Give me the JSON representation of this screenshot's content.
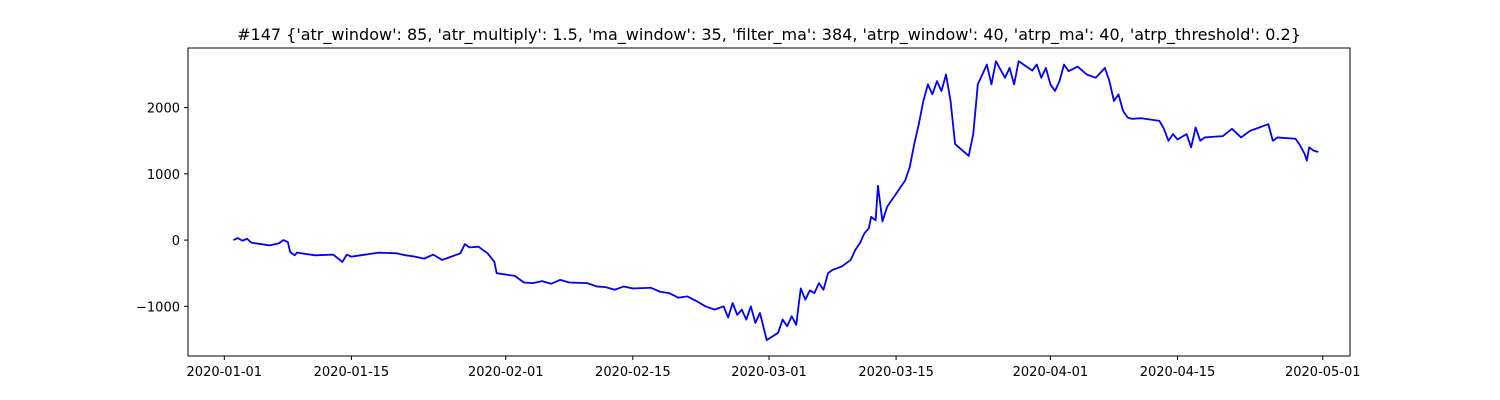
{
  "chart_data": {
    "type": "line",
    "title": "#147 {'atr_window': 85, 'atr_multiply': 1.5, 'ma_window': 35, 'filter_ma': 384, 'atrp_window': 40, 'atrp_ma': 40, 'atrp_threshold': 0.2}",
    "xlabel": "",
    "ylabel": "",
    "x_axis_kind": "date",
    "xlim": [
      "2019-12-28",
      "2020-05-04"
    ],
    "ylim": [
      -1750,
      2900
    ],
    "x_ticks": [
      "2020-01-01",
      "2020-01-15",
      "2020-02-01",
      "2020-02-15",
      "2020-03-01",
      "2020-03-15",
      "2020-04-01",
      "2020-04-15",
      "2020-05-01"
    ],
    "y_ticks": [
      -1000,
      0,
      1000,
      2000
    ],
    "y_tick_labels": [
      "−1000",
      "0",
      "1000",
      "2000"
    ],
    "grid": false,
    "legend": "none",
    "line_color": "#0000ff",
    "series": [
      {
        "points": [
          [
            "2020-01-02",
            0
          ],
          [
            "2020-01-02T12:00",
            30
          ],
          [
            "2020-01-03",
            -10
          ],
          [
            "2020-01-03T12:00",
            20
          ],
          [
            "2020-01-04",
            -40
          ],
          [
            "2020-01-05",
            -60
          ],
          [
            "2020-01-06",
            -80
          ],
          [
            "2020-01-07",
            -50
          ],
          [
            "2020-01-07T12:00",
            0
          ],
          [
            "2020-01-08",
            -30
          ],
          [
            "2020-01-08T06:00",
            -180
          ],
          [
            "2020-01-08T18:00",
            -230
          ],
          [
            "2020-01-09",
            -190
          ],
          [
            "2020-01-10",
            -210
          ],
          [
            "2020-01-11",
            -230
          ],
          [
            "2020-01-13",
            -220
          ],
          [
            "2020-01-14",
            -330
          ],
          [
            "2020-01-14T12:00",
            -220
          ],
          [
            "2020-01-15",
            -250
          ],
          [
            "2020-01-16",
            -230
          ],
          [
            "2020-01-17",
            -210
          ],
          [
            "2020-01-18",
            -190
          ],
          [
            "2020-01-20",
            -200
          ],
          [
            "2020-01-21",
            -230
          ],
          [
            "2020-01-22",
            -250
          ],
          [
            "2020-01-23",
            -280
          ],
          [
            "2020-01-24",
            -220
          ],
          [
            "2020-01-25",
            -300
          ],
          [
            "2020-01-26",
            -250
          ],
          [
            "2020-01-27",
            -200
          ],
          [
            "2020-01-27T12:00",
            -60
          ],
          [
            "2020-01-28",
            -110
          ],
          [
            "2020-01-29",
            -100
          ],
          [
            "2020-01-30",
            -200
          ],
          [
            "2020-01-30T18:00",
            -330
          ],
          [
            "2020-01-31",
            -500
          ],
          [
            "2020-02-02",
            -540
          ],
          [
            "2020-02-03",
            -640
          ],
          [
            "2020-02-04",
            -650
          ],
          [
            "2020-02-05",
            -620
          ],
          [
            "2020-02-06",
            -660
          ],
          [
            "2020-02-07",
            -600
          ],
          [
            "2020-02-08",
            -640
          ],
          [
            "2020-02-10",
            -650
          ],
          [
            "2020-02-11",
            -700
          ],
          [
            "2020-02-12",
            -710
          ],
          [
            "2020-02-13",
            -750
          ],
          [
            "2020-02-14",
            -700
          ],
          [
            "2020-02-15",
            -730
          ],
          [
            "2020-02-17",
            -720
          ],
          [
            "2020-02-18",
            -780
          ],
          [
            "2020-02-19",
            -800
          ],
          [
            "2020-02-20",
            -870
          ],
          [
            "2020-02-21",
            -850
          ],
          [
            "2020-02-22",
            -920
          ],
          [
            "2020-02-23",
            -1000
          ],
          [
            "2020-02-24",
            -1050
          ],
          [
            "2020-02-25",
            -1000
          ],
          [
            "2020-02-25T12:00",
            -1170
          ],
          [
            "2020-02-26",
            -950
          ],
          [
            "2020-02-26T12:00",
            -1130
          ],
          [
            "2020-02-27",
            -1050
          ],
          [
            "2020-02-27T12:00",
            -1200
          ],
          [
            "2020-02-28",
            -1000
          ],
          [
            "2020-02-28T12:00",
            -1250
          ],
          [
            "2020-02-29",
            -1100
          ],
          [
            "2020-02-29T18:00",
            -1510
          ],
          [
            "2020-03-02",
            -1400
          ],
          [
            "2020-03-02T12:00",
            -1200
          ],
          [
            "2020-03-03",
            -1300
          ],
          [
            "2020-03-03T12:00",
            -1150
          ],
          [
            "2020-03-04",
            -1280
          ],
          [
            "2020-03-04T06:00",
            -1000
          ],
          [
            "2020-03-04T12:00",
            -730
          ],
          [
            "2020-03-05",
            -900
          ],
          [
            "2020-03-05T12:00",
            -760
          ],
          [
            "2020-03-06",
            -800
          ],
          [
            "2020-03-06T12:00",
            -650
          ],
          [
            "2020-03-07",
            -750
          ],
          [
            "2020-03-07T12:00",
            -500
          ],
          [
            "2020-03-08",
            -450
          ],
          [
            "2020-03-09",
            -400
          ],
          [
            "2020-03-10",
            -300
          ],
          [
            "2020-03-10T12:00",
            -150
          ],
          [
            "2020-03-11",
            -50
          ],
          [
            "2020-03-11T12:00",
            100
          ],
          [
            "2020-03-12",
            180
          ],
          [
            "2020-03-12T06:00",
            350
          ],
          [
            "2020-03-12T18:00",
            300
          ],
          [
            "2020-03-13",
            820
          ],
          [
            "2020-03-13T12:00",
            280
          ],
          [
            "2020-03-14",
            500
          ],
          [
            "2020-03-15",
            700
          ],
          [
            "2020-03-16",
            900
          ],
          [
            "2020-03-16T12:00",
            1100
          ],
          [
            "2020-03-17",
            1450
          ],
          [
            "2020-03-17T12:00",
            1750
          ],
          [
            "2020-03-18",
            2100
          ],
          [
            "2020-03-18T12:00",
            2350
          ],
          [
            "2020-03-19",
            2200
          ],
          [
            "2020-03-19T12:00",
            2400
          ],
          [
            "2020-03-20",
            2250
          ],
          [
            "2020-03-20T12:00",
            2500
          ],
          [
            "2020-03-21",
            2100
          ],
          [
            "2020-03-21T12:00",
            1450
          ],
          [
            "2020-03-23",
            1270
          ],
          [
            "2020-03-23T12:00",
            1600
          ],
          [
            "2020-03-24",
            2350
          ],
          [
            "2020-03-24T12:00",
            2500
          ],
          [
            "2020-03-25",
            2650
          ],
          [
            "2020-03-25T12:00",
            2350
          ],
          [
            "2020-03-26",
            2700
          ],
          [
            "2020-03-27",
            2450
          ],
          [
            "2020-03-27T12:00",
            2600
          ],
          [
            "2020-03-28",
            2350
          ],
          [
            "2020-03-28T12:00",
            2700
          ],
          [
            "2020-03-30",
            2560
          ],
          [
            "2020-03-30T12:00",
            2650
          ],
          [
            "2020-03-31",
            2450
          ],
          [
            "2020-03-31T12:00",
            2600
          ],
          [
            "2020-04-01",
            2350
          ],
          [
            "2020-04-01T12:00",
            2250
          ],
          [
            "2020-04-02",
            2400
          ],
          [
            "2020-04-02T12:00",
            2650
          ],
          [
            "2020-04-03",
            2550
          ],
          [
            "2020-04-04",
            2620
          ],
          [
            "2020-04-05",
            2500
          ],
          [
            "2020-04-06",
            2450
          ],
          [
            "2020-04-07",
            2600
          ],
          [
            "2020-04-07T12:00",
            2400
          ],
          [
            "2020-04-08",
            2100
          ],
          [
            "2020-04-08T12:00",
            2200
          ],
          [
            "2020-04-09",
            1950
          ],
          [
            "2020-04-09T12:00",
            1850
          ],
          [
            "2020-04-10",
            1830
          ],
          [
            "2020-04-11",
            1840
          ],
          [
            "2020-04-13",
            1800
          ],
          [
            "2020-04-13T12:00",
            1680
          ],
          [
            "2020-04-14",
            1500
          ],
          [
            "2020-04-14T12:00",
            1600
          ],
          [
            "2020-04-15",
            1520
          ],
          [
            "2020-04-16",
            1600
          ],
          [
            "2020-04-16T12:00",
            1400
          ],
          [
            "2020-04-17",
            1700
          ],
          [
            "2020-04-17T12:00",
            1500
          ],
          [
            "2020-04-18",
            1550
          ],
          [
            "2020-04-19",
            1560
          ],
          [
            "2020-04-20",
            1570
          ],
          [
            "2020-04-21",
            1680
          ],
          [
            "2020-04-22",
            1550
          ],
          [
            "2020-04-23",
            1650
          ],
          [
            "2020-04-24",
            1700
          ],
          [
            "2020-04-25",
            1750
          ],
          [
            "2020-04-25T12:00",
            1500
          ],
          [
            "2020-04-26",
            1550
          ],
          [
            "2020-04-28",
            1530
          ],
          [
            "2020-04-28T12:00",
            1430
          ],
          [
            "2020-04-29",
            1300
          ],
          [
            "2020-04-29T06:00",
            1200
          ],
          [
            "2020-04-29T12:00",
            1400
          ],
          [
            "2020-04-30",
            1350
          ],
          [
            "2020-04-30T12:00",
            1330
          ]
        ]
      }
    ]
  }
}
